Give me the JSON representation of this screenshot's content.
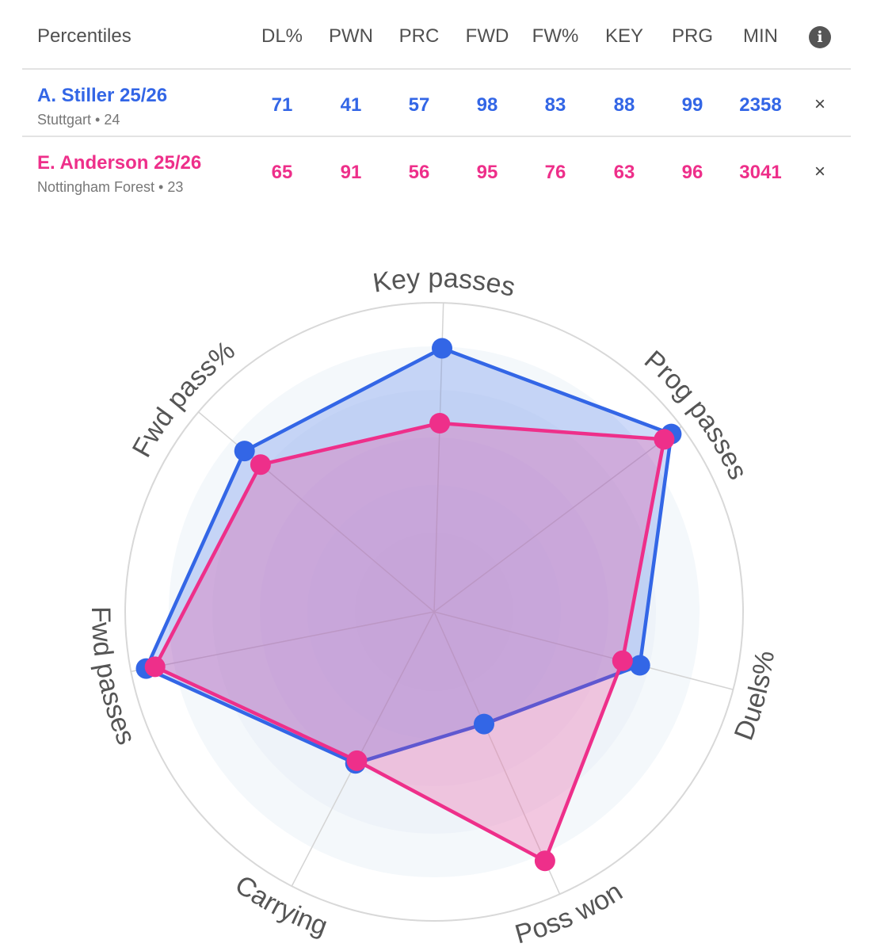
{
  "table": {
    "title": "Percentiles",
    "columns": [
      "DL%",
      "PWN",
      "PRC",
      "FWD",
      "FW%",
      "KEY",
      "PRG",
      "MIN"
    ],
    "info_icon": "info-icon",
    "remove_icon": "close-icon",
    "remove_glyph": "×",
    "players": [
      {
        "name": "A. Stiller 25/26",
        "sub": "Stuttgart • 24",
        "color": "#3366e6",
        "values": [
          "71",
          "41",
          "57",
          "98",
          "83",
          "88",
          "99",
          "2358"
        ]
      },
      {
        "name": "E. Anderson 25/26",
        "sub": "Nottingham Forest • 23",
        "color": "#ee2f8a",
        "values": [
          "65",
          "91",
          "56",
          "95",
          "76",
          "63",
          "96",
          "3041"
        ]
      }
    ]
  },
  "chart_data": {
    "type": "radar",
    "axes": [
      "Key passes",
      "Prog passes",
      "Duels%",
      "Poss won",
      "Carrying",
      "Fwd passes",
      "Fwd pass%"
    ],
    "range": [
      0,
      100
    ],
    "series": [
      {
        "name": "A. Stiller 25/26",
        "color": "#3366e6",
        "values": [
          88,
          99,
          71,
          41,
          57,
          98,
          83
        ]
      },
      {
        "name": "E. Anderson 25/26",
        "color": "#ee2f8a",
        "values": [
          63,
          96,
          65,
          91,
          56,
          95,
          76
        ]
      }
    ]
  }
}
